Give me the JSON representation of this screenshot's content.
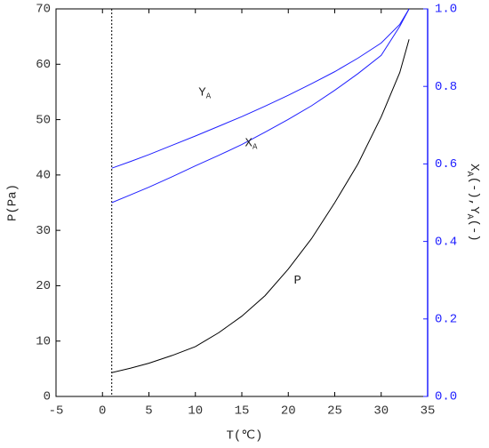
{
  "chart_data": {
    "type": "line",
    "xlabel": "T(℃)",
    "ylabel": "P(Pa)",
    "y2label_parts": [
      {
        "text": "X"
      },
      {
        "text": "A",
        "sub": true
      },
      {
        "text": "(-),Y"
      },
      {
        "text": "A",
        "sub": true
      },
      {
        "text": "(-)"
      }
    ],
    "x": [
      1,
      3,
      5,
      7.5,
      10,
      12.5,
      15,
      17.5,
      20,
      22.5,
      25,
      27.5,
      30,
      32,
      33
    ],
    "series": [
      {
        "name": "P",
        "color": "#000000",
        "axis": "y",
        "label_at": [
          21,
          21
        ],
        "values": [
          4.3,
          5.1,
          6.0,
          7.4,
          9.0,
          11.5,
          14.5,
          18.2,
          23.0,
          28.5,
          35.0,
          42.0,
          50.5,
          58.5,
          64.5
        ]
      },
      {
        "name": "X",
        "name_sub": "A",
        "color": "#2020ff",
        "axis": "y2",
        "label_at": [
          16,
          0.655
        ],
        "values": [
          0.5,
          0.52,
          0.54,
          0.567,
          0.595,
          0.622,
          0.65,
          0.682,
          0.715,
          0.75,
          0.79,
          0.833,
          0.88,
          0.955,
          1.0
        ]
      },
      {
        "name": "Y",
        "name_sub": "A",
        "color": "#2020ff",
        "axis": "y2",
        "label_at": [
          11,
          0.785
        ],
        "values": [
          0.589,
          0.606,
          0.624,
          0.648,
          0.672,
          0.697,
          0.722,
          0.749,
          0.777,
          0.807,
          0.838,
          0.873,
          0.912,
          0.96,
          1.0
        ]
      }
    ],
    "vline": 1,
    "xlim": [
      -5,
      35
    ],
    "xticks": [
      -5,
      0,
      5,
      10,
      15,
      20,
      25,
      30,
      35
    ],
    "ylim": [
      0,
      70
    ],
    "yticks": [
      0,
      10,
      20,
      30,
      40,
      50,
      60,
      70
    ],
    "y2lim": [
      0,
      1
    ],
    "y2ticks": [
      {
        "value": 0,
        "label": "0.0"
      },
      0.2,
      0.4,
      0.6,
      0.8,
      {
        "value": 1,
        "label": "1.0"
      }
    ],
    "y2color": "#2020ff"
  }
}
